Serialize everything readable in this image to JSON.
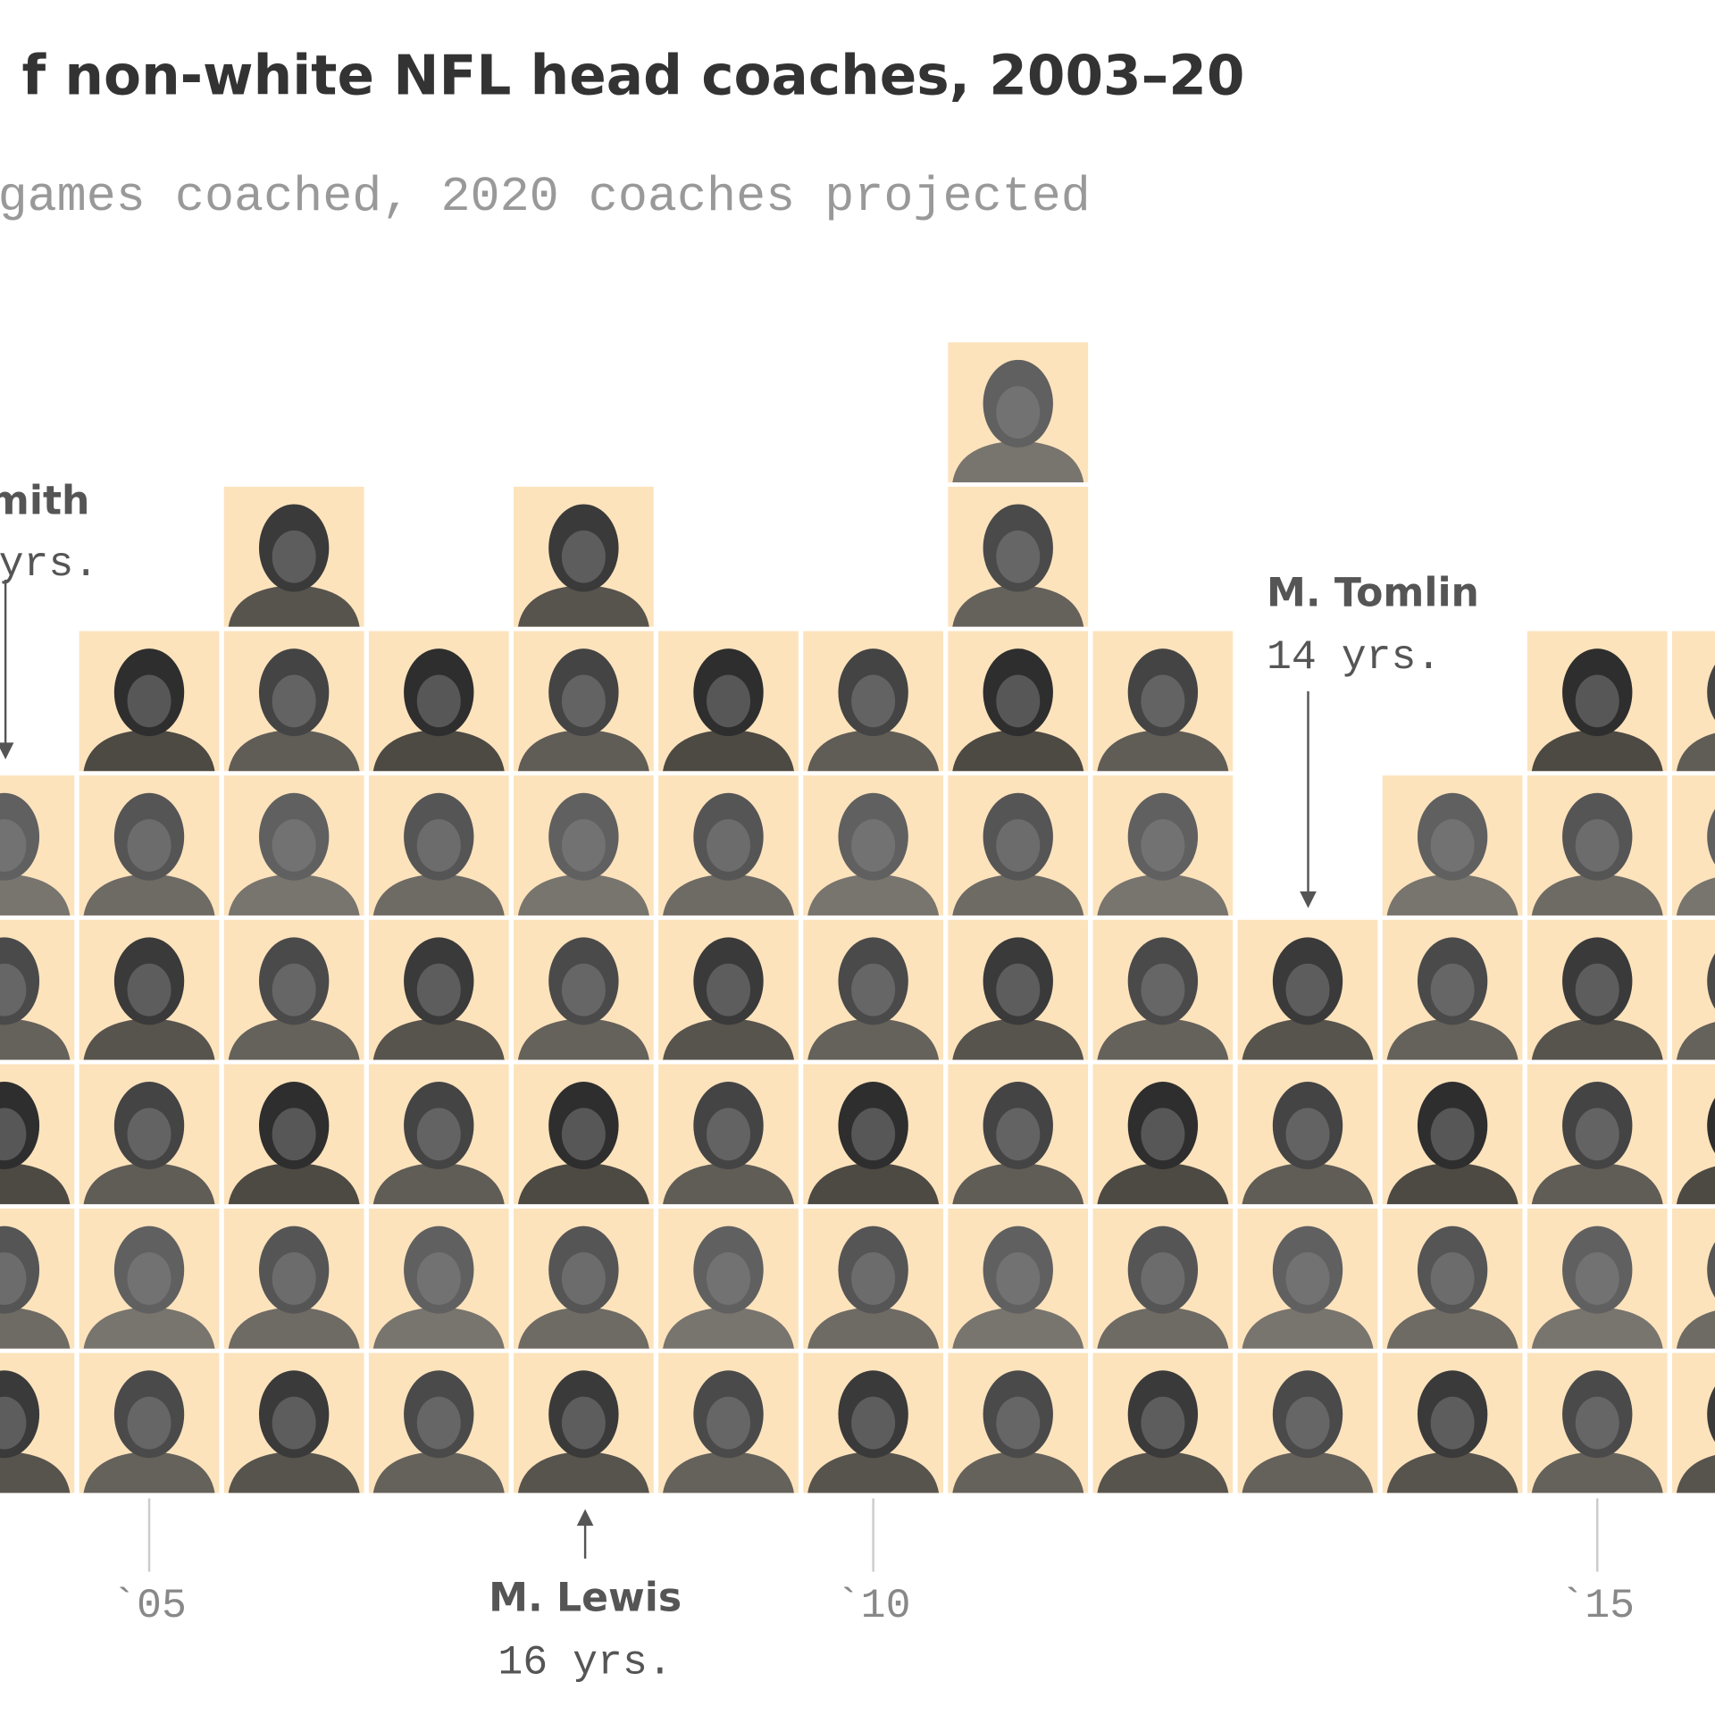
{
  "chart_data": {
    "type": "pictogram",
    "title": "f non-white NFL head coaches, 2003–20",
    "subtitle": "games coached, 2020 coaches projected",
    "categories": [
      null,
      "`05",
      null,
      null,
      null,
      null,
      "`10",
      null,
      null,
      null,
      null,
      "`15",
      null
    ],
    "values": [
      5,
      6,
      7,
      6,
      7,
      6,
      6,
      8,
      6,
      4,
      5,
      6,
      6
    ],
    "color": "#fce3bc",
    "annotations": [
      {
        "label": "mith",
        "note": "yrs."
      },
      {
        "label": "M. Tomlin",
        "note": "14 yrs."
      },
      {
        "label": "M. Lewis",
        "note": "16 yrs."
      }
    ]
  }
}
